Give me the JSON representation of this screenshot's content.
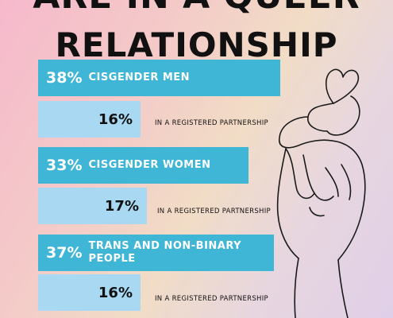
{
  "title": {
    "line1": "ARE IN A QUEER",
    "line2": "RELATIONSHIP"
  },
  "items": [
    {
      "pct": "38%",
      "group": "CISGENDER MEN",
      "registered": "16%",
      "note": "IN A REGISTERED PARTNERSHIP"
    },
    {
      "pct": "33%",
      "group": "CISGENDER WOMEN",
      "registered": "17%",
      "note": "IN A REGISTERED PARTNERSHIP"
    },
    {
      "pct": "37%",
      "group": "TRANS AND NON-BINARY PEOPLE",
      "registered": "16%",
      "note": "IN A REGISTERED PARTNERSHIP"
    }
  ],
  "chart_data": {
    "type": "bar",
    "categories": [
      "CISGENDER MEN",
      "CISGENDER WOMEN",
      "TRANS AND NON-BINARY PEOPLE"
    ],
    "series": [
      {
        "values": [
          38,
          33,
          37
        ]
      },
      {
        "name": "IN A REGISTERED PARTNERSHIP",
        "values": [
          16,
          17,
          16
        ]
      }
    ],
    "unit": "%",
    "colors": {
      "main": "#3fb6d6",
      "registered": "#a9d8f2"
    }
  }
}
